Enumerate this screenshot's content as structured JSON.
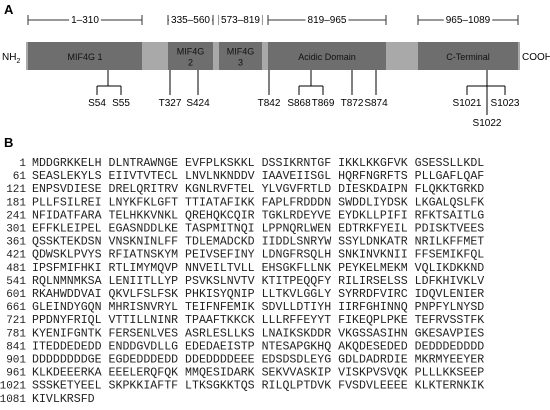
{
  "panel_a": {
    "label": "A",
    "nh": "NH",
    "nh_sub": "2",
    "cooh": "COOH",
    "ranges": [
      "1–310",
      "335–560",
      "573–819",
      "819–965",
      "965–1089"
    ],
    "domains": [
      [
        "MIF4G 1"
      ],
      [
        "MIF4G",
        "2"
      ],
      [
        "MIF4G",
        "3"
      ],
      [
        "Acidic Domain"
      ],
      [
        "C-Terminal"
      ]
    ],
    "sites": [
      "S54",
      "S55",
      "T327",
      "S424",
      "T842",
      "S868",
      "T869",
      "T872",
      "S874",
      "S1021",
      "S1022",
      "S1023"
    ]
  },
  "panel_b": {
    "label": "B",
    "rows": [
      {
        "start": 1,
        "seq": "MDDGRKKELH DLNTRAWNGE EVFPLKSKKL DSSIKRNTGF IKKLKKGFVK GSESSLLKDL"
      },
      {
        "start": 61,
        "seq": "SEASLEKYLS EIIVTVTECL LNVLNKNDDV IAAVEIISGL HQRFNGRFTS PLLGAFLQAF"
      },
      {
        "start": 121,
        "seq": "ENPSVDIESE DRELQRITRV KGNLRVFTEL YLVGVFRTLD DIESKDAIPN FLQKKTGRKD"
      },
      {
        "start": 181,
        "seq": "PLLFSILREI LNYKFKLGFT TTIATAFIKK FAPLFRDDDN SWDDLIYDSK LKGALQSLFK"
      },
      {
        "start": 241,
        "seq": "NFIDATFARA TELHKKVNKL QREHQKCQIR TGKLRDEYVE EYDKLLPIFI RFKTSAITLG"
      },
      {
        "start": 301,
        "seq": "EFFKLEIPEL EGASNDDLKE TASPMITNQI LPPNQRLWEN EDTRKFYEIL PDISKTVEES"
      },
      {
        "start": 361,
        "seq": "QSSKTEKDSN VNSKNINLFF TDLEMADCKD IIDDLSNRYW SSYLDNKATR NRILKFFMET"
      },
      {
        "start": 421,
        "seq": "QDWSKLPVYS RFIATNSKYM PEIVSEFINY LDNGFRSQLH SNKINVKNII FFSEMIKFQL"
      },
      {
        "start": 481,
        "seq": "IPSFMIFHKI RTLIMYMQVP NNVEILTVLL EHSGKFLLNK PEYKELMEKM VQLIKDKKND"
      },
      {
        "start": 541,
        "seq": "RQLNMNMKSA LENIITLLYP PSVKSLNVTV KTITPEQQFY RILIRSELSS LDFKHIVKLV"
      },
      {
        "start": 601,
        "seq": "RKAHWDDVAI QKVLFSLFSK PHKISYQNIP LLTKVLGGLY SYRRDFVIRC IDQVLENIER"
      },
      {
        "start": 661,
        "seq": "GLEINDYGQN MHRISNVRYL TEIFNFEMIK SDVLLDTIYH IIRFGHINNQ PNPFYLNYSD"
      },
      {
        "start": 721,
        "seq": "PPDNYFRIQL VTTILLNINR TPAAFTKKCK LLLRFFEYYT FIKEQPLPKE TEFRVSSTFK"
      },
      {
        "start": 781,
        "seq": "KYENIFGNTK FERSENLVES ASRLESLLKS LNAIKSKDDR VKGSSASIHN GKESAVPIES"
      },
      {
        "start": 841,
        "seq": "ITEDDEDEDD ENDDGVDLLG EDEDAEISTP NTESAPGKHQ AKQDESEDED DEDDDEDDDD"
      },
      {
        "start": 901,
        "seq": "DDDDDDDDGE EGDEDDDEDD DDEDDDDEEE EDSDSDLEYG GDLDADRDIE MKRMYEEYER"
      },
      {
        "start": 961,
        "seq": "KLKDEEERKA EEELERQFQK MMQESIDARK SEKVVASKIP VISKPVSVQK PLLLKKSEEP"
      },
      {
        "start": 1021,
        "seq": "SSSKETYEEL SKPKKIAFTF LTKSGKKTQS RILQLPTDVK FVSDVLEEEE KLKTERNKIK"
      },
      {
        "start": 1081,
        "seq": "KIVLKRSFD"
      }
    ]
  }
}
